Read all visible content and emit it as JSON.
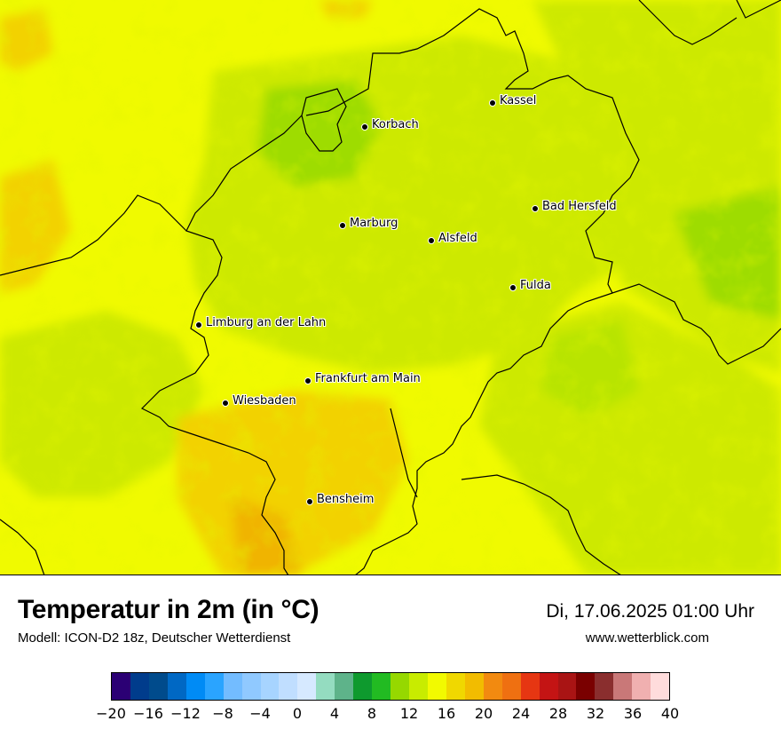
{
  "map": {
    "cities": [
      {
        "name": "Kassel"
      },
      {
        "name": "Korbach"
      },
      {
        "name": "Bad Hersfeld"
      },
      {
        "name": "Marburg"
      },
      {
        "name": "Alsfeld"
      },
      {
        "name": "Fulda"
      },
      {
        "name": "Limburg an der Lahn"
      },
      {
        "name": "Frankfurt am Main"
      },
      {
        "name": "Wiesbaden"
      },
      {
        "name": "Bensheim"
      }
    ]
  },
  "footer": {
    "title": "Temperatur in 2m (in °C)",
    "model": "Modell: ICON-D2 18z, Deutscher Wetterdienst",
    "datetime": "Di, 17.06.2025 01:00 Uhr",
    "website": "www.wetterblick.com"
  },
  "legend": {
    "ticks": [
      "−20",
      "−16",
      "−12",
      "−8",
      "−4",
      "0",
      "4",
      "8",
      "12",
      "16",
      "20",
      "24",
      "28",
      "32",
      "36",
      "40"
    ],
    "colors": [
      "#2b0074",
      "#003c8c",
      "#004b8c",
      "#0068c4",
      "#008bf5",
      "#2aa4ff",
      "#73bcff",
      "#90c9ff",
      "#a7d4ff",
      "#c0deff",
      "#d6e9ff",
      "#94dcc0",
      "#5eb38a",
      "#0e9a2e",
      "#22bb22",
      "#96d800",
      "#c8ec00",
      "#f2fa00",
      "#f0d800",
      "#f2bc00",
      "#f28a10",
      "#ef7011",
      "#e63612",
      "#c41414",
      "#a91414",
      "#7a0000",
      "#8a2e2e",
      "#c97878",
      "#f0b0b0",
      "#ffdcdc"
    ],
    "range": [
      -20,
      40
    ]
  },
  "temperature_colors": {
    "yellow": "#f0fa00",
    "yellow_green": "#cde900",
    "green": "#92d800",
    "orange": "#f2c200"
  }
}
